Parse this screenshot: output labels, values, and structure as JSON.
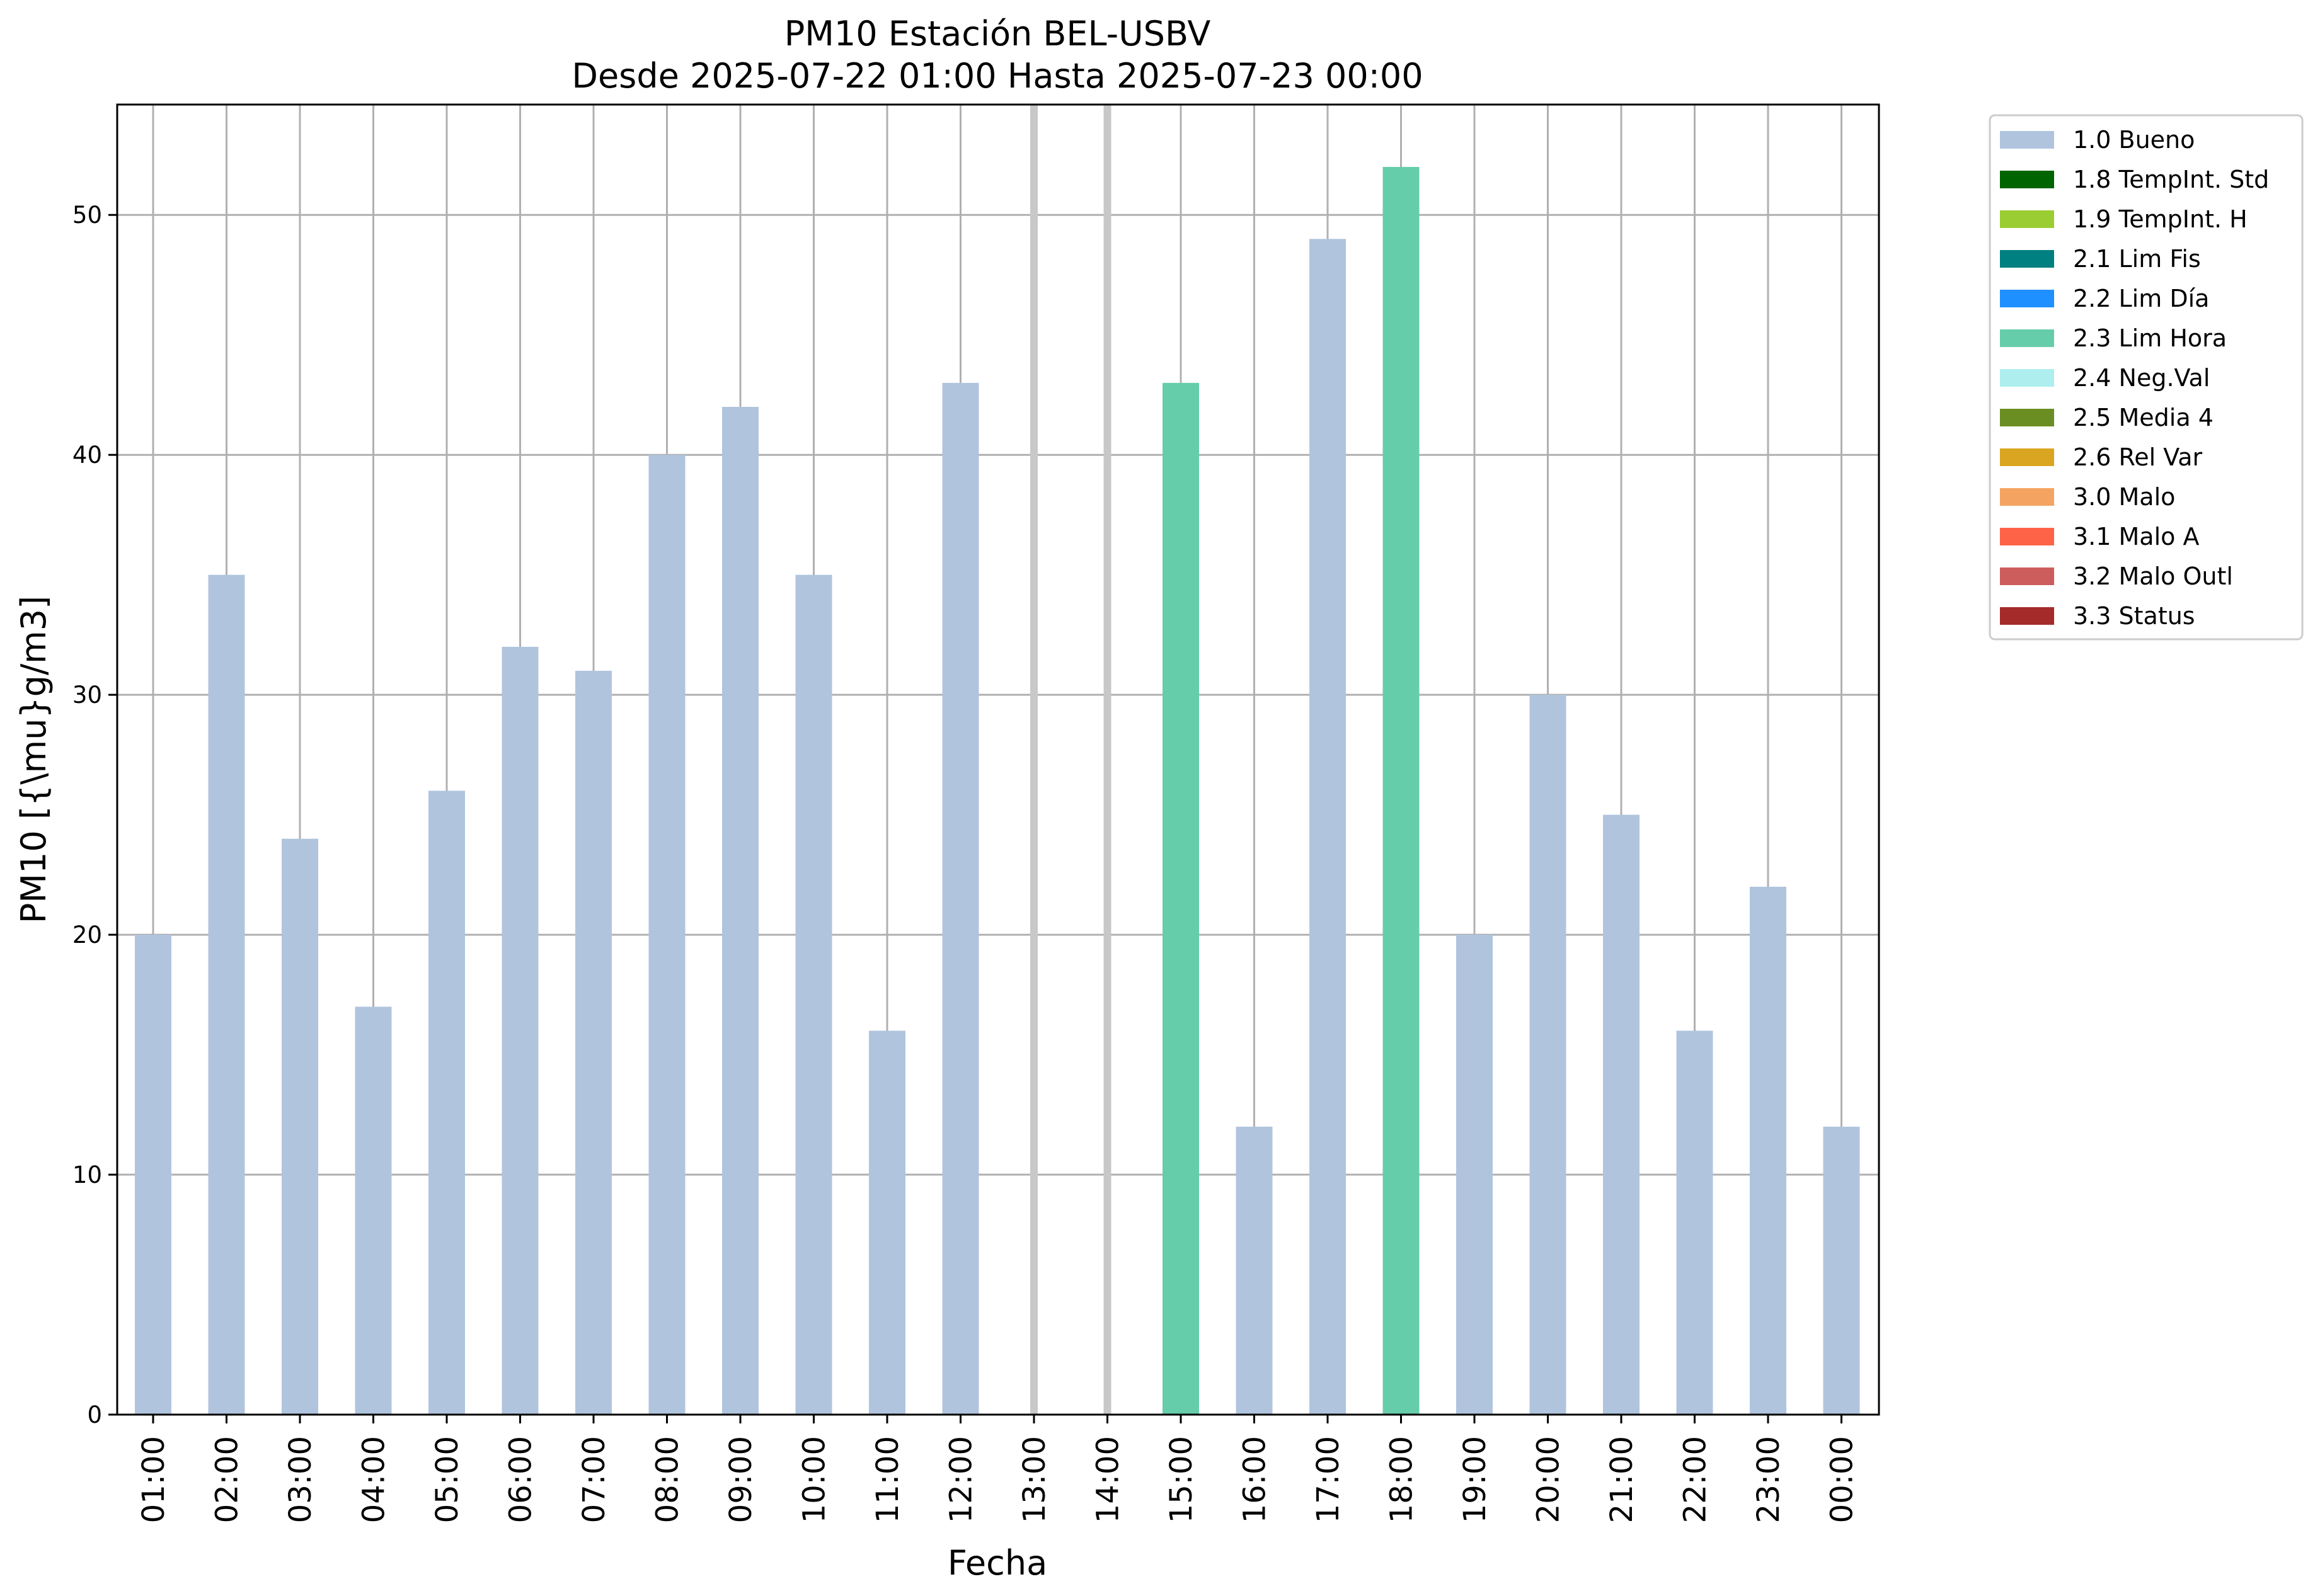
{
  "chart_data": {
    "type": "bar",
    "title": "PM10 Estación BEL-USBV",
    "subtitle": "Desde 2025-07-22 01:00 Hasta 2025-07-23 00:00",
    "xlabel": "Fecha",
    "ylabel": "PM10 [{\\mu}g/m3]",
    "ylim": [
      0,
      54.6
    ],
    "yticks": [
      0,
      10,
      20,
      30,
      40,
      50
    ],
    "grid": true,
    "legend_position": "outside right, top",
    "categories": [
      "01:00",
      "02:00",
      "03:00",
      "04:00",
      "05:00",
      "06:00",
      "07:00",
      "08:00",
      "09:00",
      "10:00",
      "11:00",
      "12:00",
      "13:00",
      "14:00",
      "15:00",
      "16:00",
      "17:00",
      "18:00",
      "19:00",
      "20:00",
      "21:00",
      "22:00",
      "23:00",
      "00:00"
    ],
    "values": [
      20,
      35,
      24,
      17,
      26,
      32,
      31,
      40,
      42,
      35,
      16,
      43,
      null,
      null,
      43,
      12,
      49,
      52,
      20,
      30,
      25,
      16,
      22,
      12
    ],
    "flags": [
      "1.0 Bueno",
      "1.0 Bueno",
      "1.0 Bueno",
      "1.0 Bueno",
      "1.0 Bueno",
      "1.0 Bueno",
      "1.0 Bueno",
      "1.0 Bueno",
      "1.0 Bueno",
      "1.0 Bueno",
      "1.0 Bueno",
      "1.0 Bueno",
      null,
      null,
      "2.3 Lim Hora",
      "1.0 Bueno",
      "1.0 Bueno",
      "2.3 Lim Hora",
      "1.0 Bueno",
      "1.0 Bueno",
      "1.0 Bueno",
      "1.0 Bueno",
      "1.0 Bueno",
      "1.0 Bueno"
    ],
    "missing_markers": [
      "13:00",
      "14:00"
    ],
    "legend": [
      {
        "label": "1.0 Bueno",
        "color": "#b0c4de"
      },
      {
        "label": "1.8 TempInt. Std",
        "color": "#006400"
      },
      {
        "label": "1.9 TempInt. H",
        "color": "#9acd32"
      },
      {
        "label": "2.1 Lim Fis",
        "color": "#008080"
      },
      {
        "label": "2.2 Lim Día",
        "color": "#1e90ff"
      },
      {
        "label": "2.3 Lim Hora",
        "color": "#66cdaa"
      },
      {
        "label": "2.4 Neg.Val",
        "color": "#afeeee"
      },
      {
        "label": "2.5 Media 4",
        "color": "#6b8e23"
      },
      {
        "label": "2.6 Rel Var",
        "color": "#daa520"
      },
      {
        "label": "3.0 Malo",
        "color": "#f4a460"
      },
      {
        "label": "3.1 Malo A",
        "color": "#ff6347"
      },
      {
        "label": "3.2 Malo Outl",
        "color": "#cd5c5c"
      },
      {
        "label": "3.3 Status",
        "color": "#a52a2a"
      }
    ],
    "colors": {
      "grid": "#b0b0b0",
      "missing_marker": "#c8c8c8",
      "axis": "#000000"
    }
  }
}
